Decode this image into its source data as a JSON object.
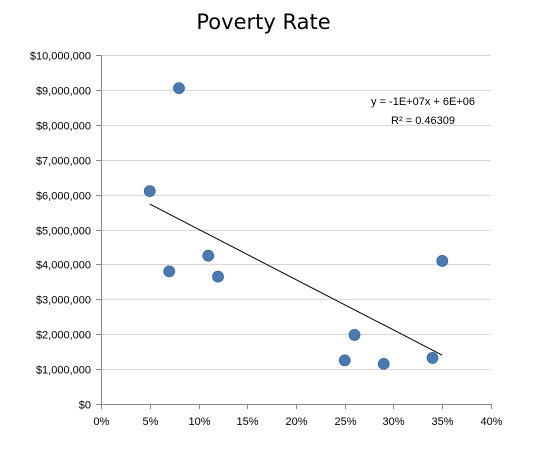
{
  "chart_data": {
    "type": "scatter",
    "title": "Poverty Rate",
    "xlabel": "",
    "ylabel": "",
    "xlim": [
      0,
      0.4
    ],
    "ylim": [
      0,
      10000000
    ],
    "grid": {
      "y": true,
      "x": false
    },
    "x_ticks": [
      0,
      0.05,
      0.1,
      0.15,
      0.2,
      0.25,
      0.3,
      0.35,
      0.4
    ],
    "x_tick_labels": [
      "0%",
      "5%",
      "10%",
      "15%",
      "20%",
      "25%",
      "30%",
      "35%",
      "40%"
    ],
    "y_ticks": [
      0,
      1000000,
      2000000,
      3000000,
      4000000,
      5000000,
      6000000,
      7000000,
      8000000,
      9000000,
      10000000
    ],
    "y_tick_labels": [
      "$0",
      "$1,000,000",
      "$2,000,000",
      "$3,000,000",
      "$4,000,000",
      "$5,000,000",
      "$6,000,000",
      "$7,000,000",
      "$8,000,000",
      "$9,000,000",
      "$10,000,000"
    ],
    "points": [
      {
        "x": 0.05,
        "y": 6100000
      },
      {
        "x": 0.07,
        "y": 3800000
      },
      {
        "x": 0.08,
        "y": 9050000
      },
      {
        "x": 0.11,
        "y": 4250000
      },
      {
        "x": 0.12,
        "y": 3650000
      },
      {
        "x": 0.25,
        "y": 1250000
      },
      {
        "x": 0.26,
        "y": 1980000
      },
      {
        "x": 0.29,
        "y": 1150000
      },
      {
        "x": 0.34,
        "y": 1320000
      },
      {
        "x": 0.35,
        "y": 4100000
      }
    ],
    "trendline": {
      "type": "linear",
      "x_range": [
        0.05,
        0.35
      ],
      "y_values": [
        5730000,
        1400000
      ],
      "equation": "y = -1E+07x + 6E+06",
      "r_squared": "R² = 0.46309"
    },
    "colors": {
      "marker": "#4a7ab0",
      "trendline": "#000000",
      "grid": "#d9d9d9",
      "axis": "#888888"
    }
  }
}
